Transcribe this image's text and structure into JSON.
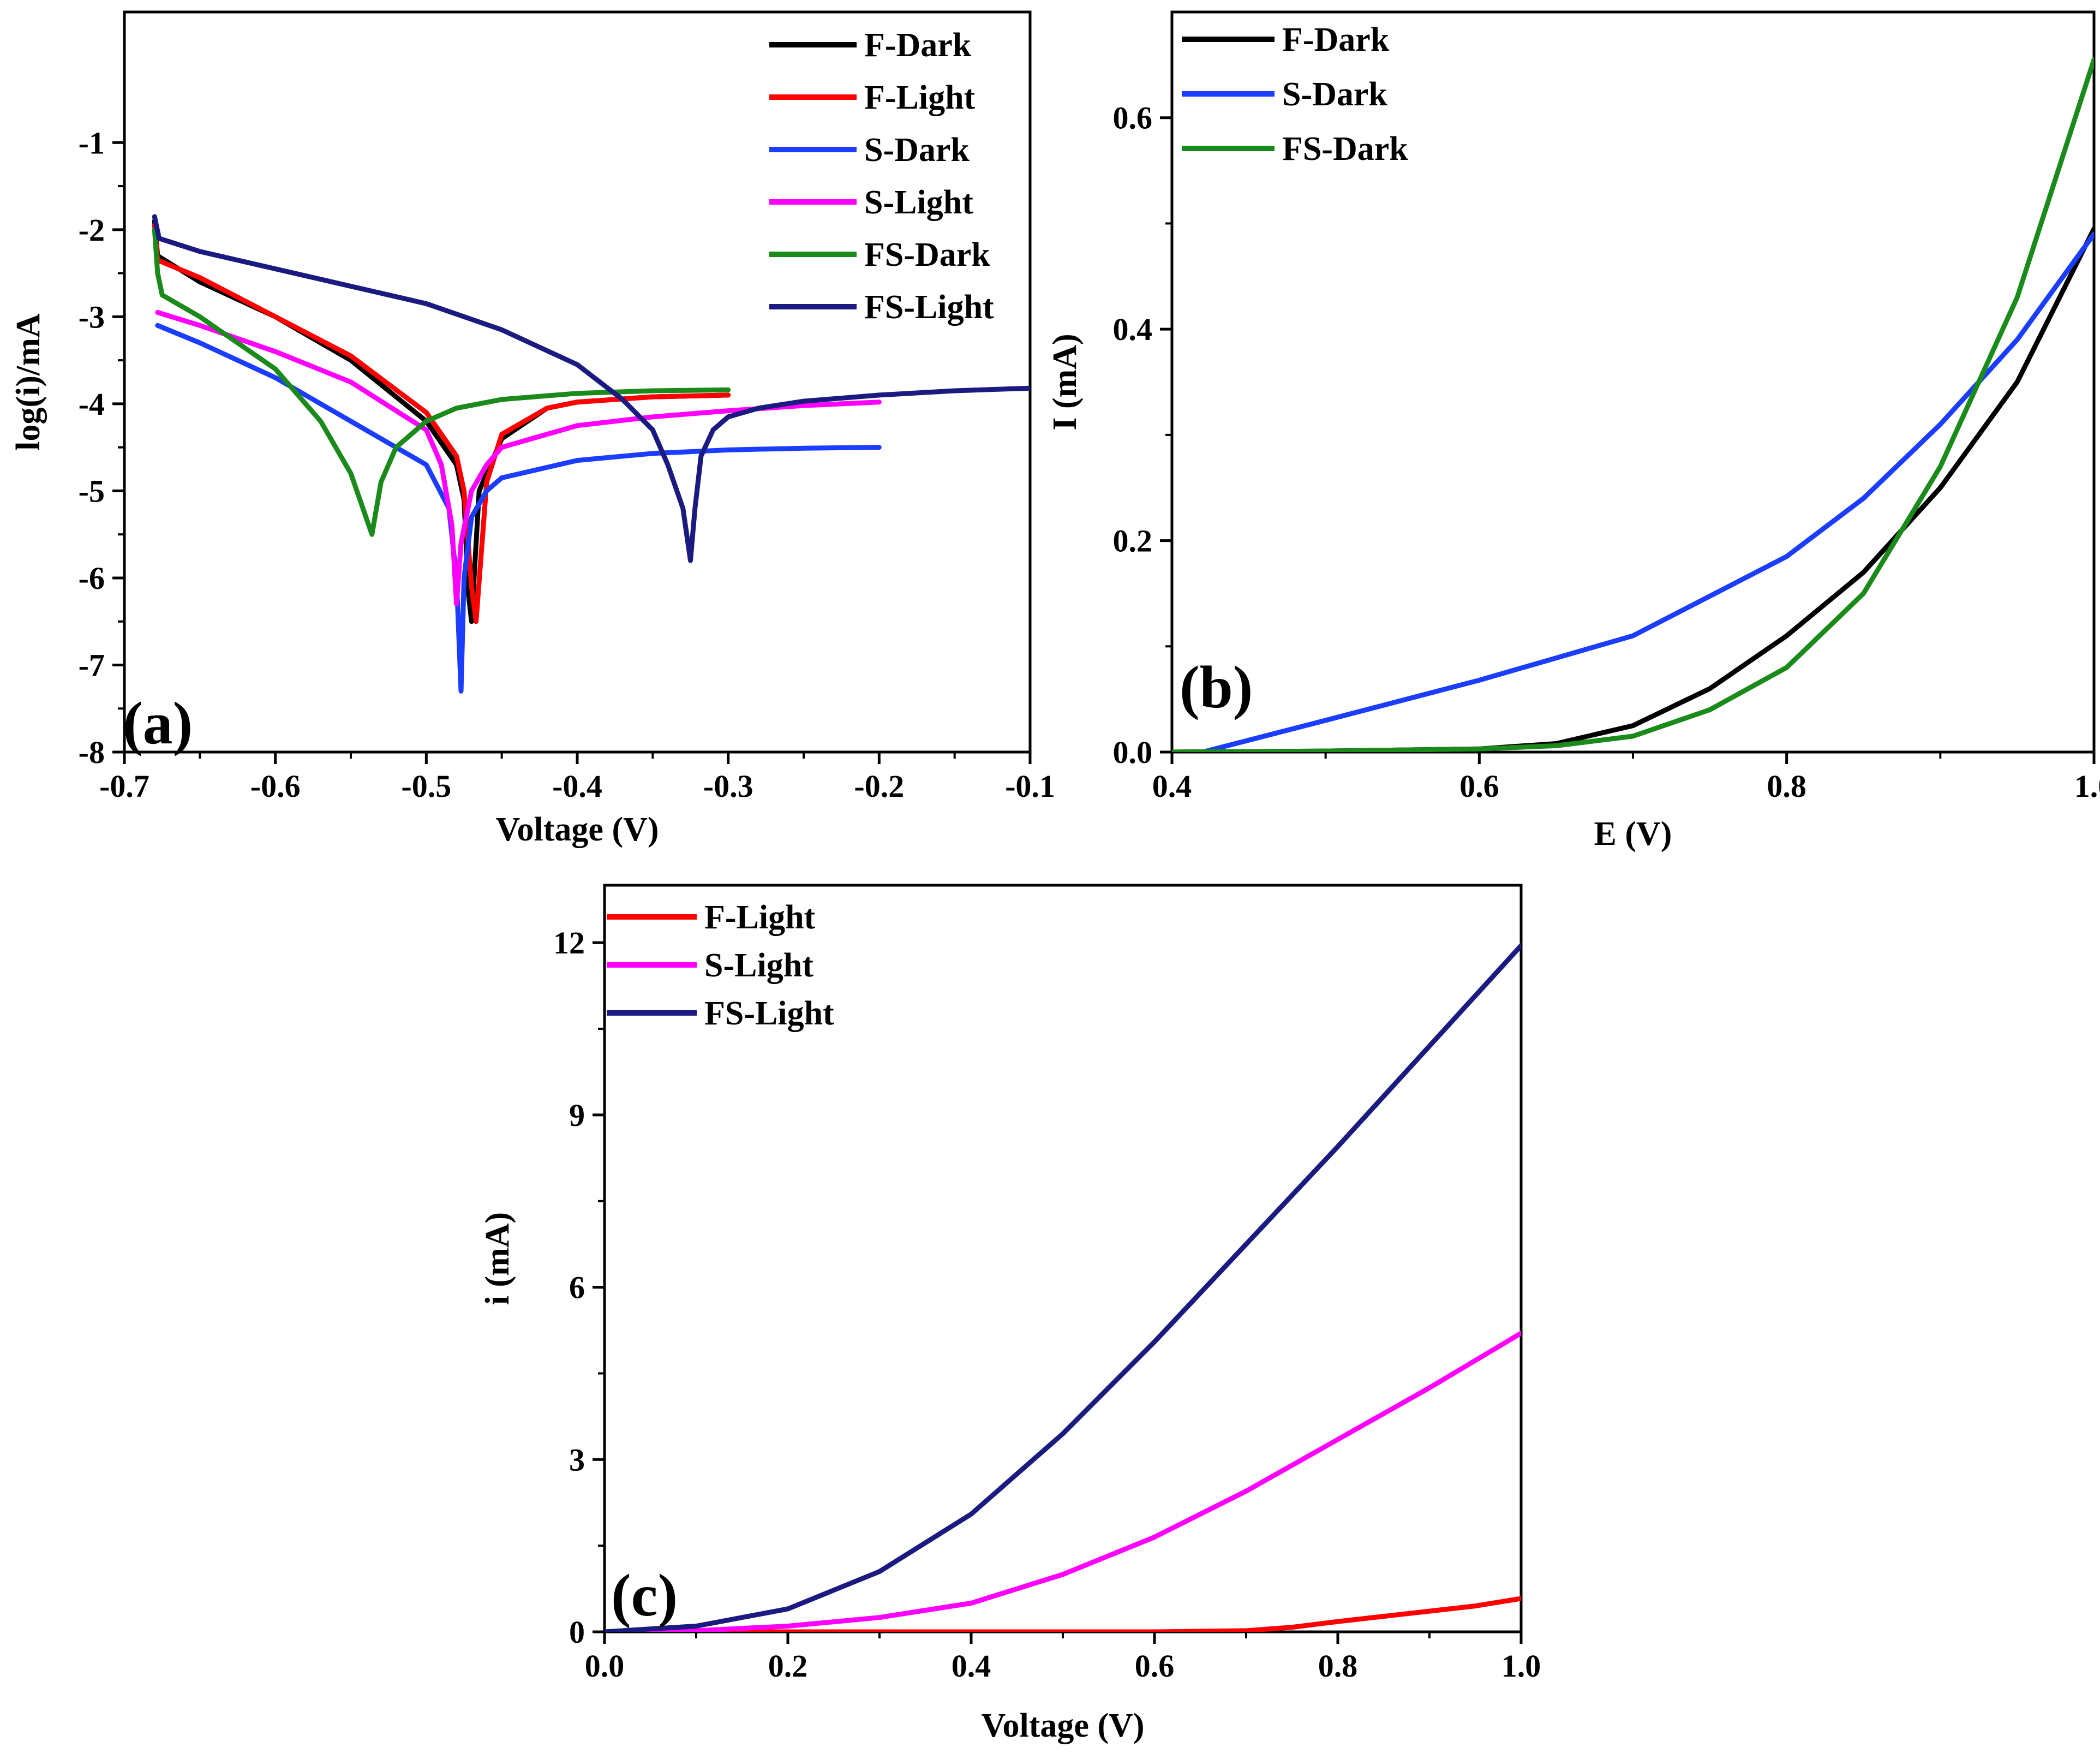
{
  "chart_data": [
    {
      "id": "a",
      "type": "line",
      "panel_label": "(a)",
      "xlabel": "Voltage (V)",
      "ylabel": "log(i)/mA",
      "xlim": [
        -0.7,
        -0.1
      ],
      "ylim": [
        -8,
        0.5
      ],
      "xticks": [
        -0.7,
        -0.6,
        -0.5,
        -0.4,
        -0.3,
        -0.2,
        -0.1
      ],
      "xtick_labels": [
        "-0.7",
        "-0.6",
        "-0.5",
        "-0.4",
        "-0.3",
        "-0.2",
        "-0.1"
      ],
      "yticks": [
        -8,
        -7,
        -6,
        -5,
        -4,
        -3,
        -2,
        -1
      ],
      "ytick_labels": [
        "-8",
        "-7",
        "-6",
        "-5",
        "-4",
        "-3",
        "-2",
        "-1"
      ],
      "legend_position": "top-right",
      "series": [
        {
          "name": "F-Dark",
          "color": "#000000",
          "x": [
            -0.68,
            -0.678,
            -0.65,
            -0.6,
            -0.55,
            -0.5,
            -0.48,
            -0.475,
            -0.472,
            -0.47,
            -0.465,
            -0.45,
            -0.42,
            -0.4,
            -0.35,
            -0.3
          ],
          "y": [
            -1.9,
            -2.3,
            -2.6,
            -3.0,
            -3.5,
            -4.2,
            -4.7,
            -5.1,
            -6.2,
            -6.5,
            -5.0,
            -4.4,
            -4.05,
            -3.98,
            -3.92,
            -3.9
          ]
        },
        {
          "name": "F-Light",
          "color": "#ff0000",
          "x": [
            -0.68,
            -0.678,
            -0.65,
            -0.6,
            -0.55,
            -0.5,
            -0.48,
            -0.475,
            -0.47,
            -0.467,
            -0.46,
            -0.45,
            -0.42,
            -0.4,
            -0.35,
            -0.3
          ],
          "y": [
            -1.95,
            -2.35,
            -2.55,
            -3.0,
            -3.45,
            -4.1,
            -4.6,
            -5.0,
            -6.1,
            -6.5,
            -4.9,
            -4.35,
            -4.05,
            -3.98,
            -3.92,
            -3.9
          ]
        },
        {
          "name": "S-Dark",
          "color": "#1a3dff",
          "x": [
            -0.678,
            -0.65,
            -0.6,
            -0.55,
            -0.5,
            -0.485,
            -0.48,
            -0.477,
            -0.475,
            -0.47,
            -0.46,
            -0.45,
            -0.4,
            -0.35,
            -0.3,
            -0.25,
            -0.2
          ],
          "y": [
            -3.1,
            -3.3,
            -3.7,
            -4.2,
            -4.7,
            -5.2,
            -6.0,
            -7.3,
            -6.0,
            -5.3,
            -5.0,
            -4.85,
            -4.65,
            -4.57,
            -4.53,
            -4.51,
            -4.5
          ]
        },
        {
          "name": "S-Light",
          "color": "#ff00ff",
          "x": [
            -0.678,
            -0.65,
            -0.6,
            -0.55,
            -0.5,
            -0.49,
            -0.483,
            -0.48,
            -0.477,
            -0.47,
            -0.46,
            -0.45,
            -0.4,
            -0.35,
            -0.3,
            -0.25,
            -0.2
          ],
          "y": [
            -2.95,
            -3.1,
            -3.4,
            -3.75,
            -4.3,
            -4.7,
            -5.4,
            -6.3,
            -5.6,
            -5.0,
            -4.7,
            -4.5,
            -4.25,
            -4.15,
            -4.08,
            -4.02,
            -3.98
          ]
        },
        {
          "name": "FS-Dark",
          "color": "#1a8a1a",
          "x": [
            -0.68,
            -0.678,
            -0.675,
            -0.65,
            -0.6,
            -0.57,
            -0.55,
            -0.54,
            -0.536,
            -0.534,
            -0.53,
            -0.52,
            -0.5,
            -0.48,
            -0.45,
            -0.4,
            -0.35,
            -0.3
          ],
          "y": [
            -2.0,
            -2.5,
            -2.75,
            -3.0,
            -3.6,
            -4.2,
            -4.8,
            -5.3,
            -5.5,
            -5.3,
            -4.9,
            -4.5,
            -4.2,
            -4.05,
            -3.95,
            -3.88,
            -3.85,
            -3.84
          ]
        },
        {
          "name": "FS-Light",
          "color": "#1a1a80",
          "x": [
            -0.68,
            -0.677,
            -0.65,
            -0.6,
            -0.55,
            -0.5,
            -0.45,
            -0.4,
            -0.37,
            -0.35,
            -0.34,
            -0.33,
            -0.325,
            -0.322,
            -0.318,
            -0.31,
            -0.3,
            -0.28,
            -0.25,
            -0.2,
            -0.15,
            -0.1
          ],
          "y": [
            -1.85,
            -2.1,
            -2.25,
            -2.45,
            -2.65,
            -2.85,
            -3.15,
            -3.55,
            -3.95,
            -4.3,
            -4.7,
            -5.2,
            -5.8,
            -5.2,
            -4.6,
            -4.3,
            -4.15,
            -4.05,
            -3.97,
            -3.9,
            -3.85,
            -3.82
          ]
        }
      ]
    },
    {
      "id": "b",
      "type": "line",
      "panel_label": "(b)",
      "xlabel": "E (V)",
      "ylabel": "I (mA)",
      "xlim": [
        0.4,
        1.0
      ],
      "ylim": [
        0,
        0.7
      ],
      "xticks": [
        0.4,
        0.6,
        0.8,
        1.0
      ],
      "xtick_labels": [
        "0.4",
        "0.6",
        "0.8",
        "1.0"
      ],
      "yticks": [
        0.0,
        0.2,
        0.4,
        0.6
      ],
      "ytick_labels": [
        "0.0",
        "0.2",
        "0.4",
        "0.6"
      ],
      "legend_position": "top-left",
      "series": [
        {
          "name": "F-Dark",
          "color": "#000000",
          "x": [
            0.4,
            0.5,
            0.6,
            0.65,
            0.7,
            0.75,
            0.8,
            0.85,
            0.9,
            0.95,
            1.0
          ],
          "y": [
            0.0,
            0.001,
            0.003,
            0.008,
            0.025,
            0.06,
            0.11,
            0.17,
            0.25,
            0.35,
            0.495
          ]
        },
        {
          "name": "S-Dark",
          "color": "#1a3dff",
          "x": [
            0.42,
            0.5,
            0.6,
            0.7,
            0.8,
            0.85,
            0.9,
            0.95,
            1.0
          ],
          "y": [
            0.0,
            0.03,
            0.068,
            0.11,
            0.185,
            0.24,
            0.31,
            0.39,
            0.49
          ]
        },
        {
          "name": "FS-Dark",
          "color": "#1a8a1a",
          "x": [
            0.4,
            0.5,
            0.6,
            0.65,
            0.7,
            0.75,
            0.8,
            0.85,
            0.9,
            0.95,
            1.0
          ],
          "y": [
            0.0,
            0.001,
            0.003,
            0.006,
            0.015,
            0.04,
            0.08,
            0.15,
            0.27,
            0.43,
            0.655
          ]
        }
      ]
    },
    {
      "id": "c",
      "type": "line",
      "panel_label": "(c)",
      "xlabel": "Voltage (V)",
      "ylabel": "i (mA)",
      "xlim": [
        0.0,
        1.0
      ],
      "ylim": [
        0,
        13
      ],
      "xticks": [
        0.0,
        0.2,
        0.4,
        0.6,
        0.8,
        1.0
      ],
      "xtick_labels": [
        "0.0",
        "0.2",
        "0.4",
        "0.6",
        "0.8",
        "1.0"
      ],
      "yticks": [
        0,
        3,
        6,
        9,
        12
      ],
      "ytick_labels": [
        "0",
        "3",
        "6",
        "9",
        "12"
      ],
      "legend_position": "top-left",
      "series": [
        {
          "name": "F-Light",
          "color": "#ff0000",
          "x": [
            0.0,
            0.2,
            0.4,
            0.6,
            0.7,
            0.75,
            0.8,
            0.85,
            0.9,
            0.95,
            1.0
          ],
          "y": [
            0.0,
            0.0,
            0.0,
            0.0,
            0.02,
            0.08,
            0.18,
            0.27,
            0.36,
            0.45,
            0.58
          ]
        },
        {
          "name": "S-Light",
          "color": "#ff00ff",
          "x": [
            0.0,
            0.1,
            0.2,
            0.3,
            0.4,
            0.5,
            0.6,
            0.7,
            0.8,
            0.9,
            1.0
          ],
          "y": [
            0.0,
            0.02,
            0.1,
            0.25,
            0.5,
            1.0,
            1.65,
            2.45,
            3.35,
            4.25,
            5.2
          ]
        },
        {
          "name": "FS-Light",
          "color": "#1a1a80",
          "x": [
            0.0,
            0.1,
            0.2,
            0.3,
            0.4,
            0.5,
            0.6,
            0.7,
            0.8,
            0.9,
            1.0
          ],
          "y": [
            0.0,
            0.1,
            0.4,
            1.05,
            2.05,
            3.45,
            5.05,
            6.75,
            8.45,
            10.2,
            11.95
          ]
        }
      ]
    }
  ]
}
